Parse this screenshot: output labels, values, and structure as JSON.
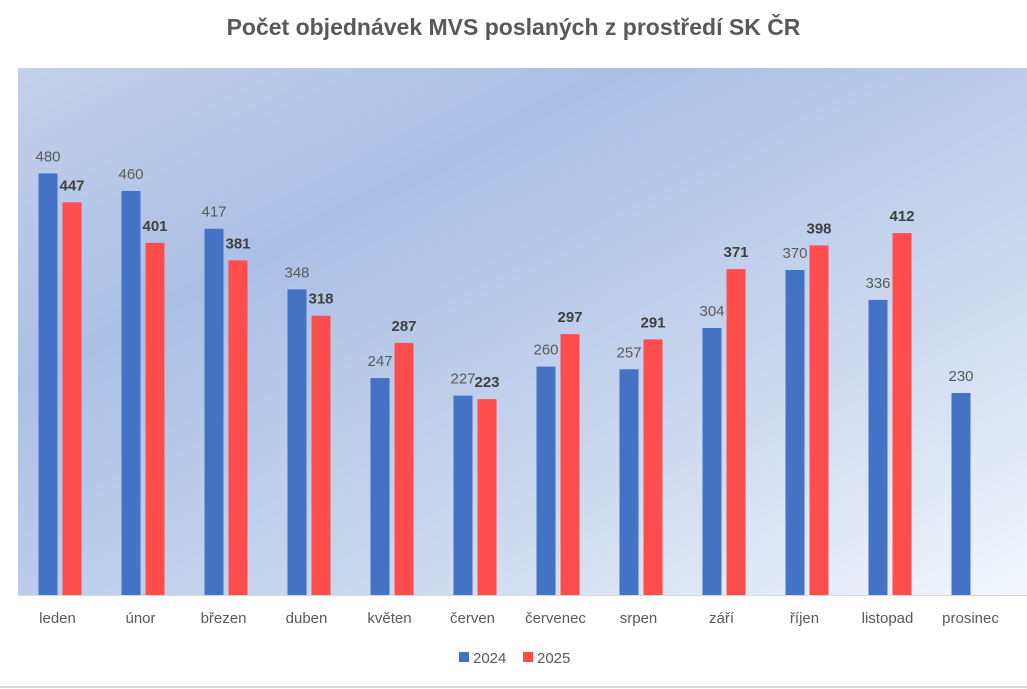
{
  "chart_data": {
    "type": "bar",
    "title": "Počet objednávek MVS poslaných z prostředí SK ČR",
    "categories": [
      "leden",
      "únor",
      "březen",
      "duben",
      "květen",
      "červen",
      "červenec",
      "srpen",
      "září",
      "říjen",
      "listopad",
      "prosinec"
    ],
    "series": [
      {
        "name": "2024",
        "color": "#4472c4",
        "values": [
          480,
          460,
          417,
          348,
          247,
          227,
          260,
          257,
          304,
          370,
          336,
          230
        ]
      },
      {
        "name": "2025",
        "color": "#ff4d4d",
        "values": [
          447,
          401,
          381,
          318,
          287,
          223,
          297,
          291,
          371,
          398,
          412,
          null
        ]
      }
    ],
    "ylim": [
      0,
      600
    ],
    "grid": false,
    "legend": "bottom",
    "data_labels": true,
    "background": "gradient-blue"
  }
}
